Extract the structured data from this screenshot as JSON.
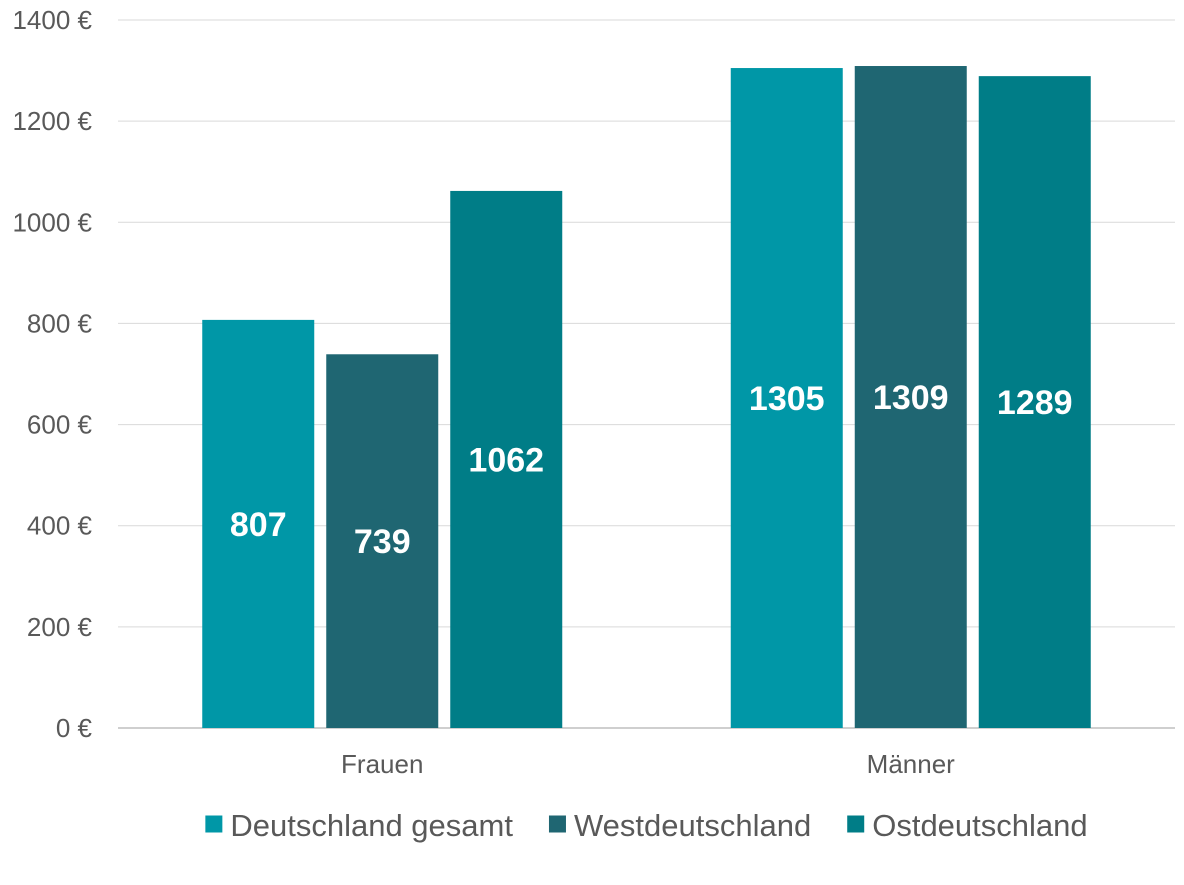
{
  "chart_data": {
    "type": "bar",
    "categories": [
      "Frauen",
      "Männer"
    ],
    "series": [
      {
        "name": "Deutschland gesamt",
        "values": [
          807,
          1305
        ],
        "color": "#0097A7"
      },
      {
        "name": "Westdeutschland",
        "values": [
          739,
          1309
        ],
        "color": "#1F6672"
      },
      {
        "name": "Ostdeutschland",
        "values": [
          1062,
          1289
        ],
        "color": "#007D87"
      }
    ],
    "ylim": [
      0,
      1400
    ],
    "yticks": [
      0,
      200,
      400,
      600,
      800,
      1000,
      1200,
      1400
    ],
    "ytick_labels": [
      "0 €",
      "200 €",
      "400 €",
      "600 €",
      "800 €",
      "1000 €",
      "1200 €",
      "1400 €"
    ],
    "grid": true,
    "legend_position": "bottom",
    "data_labels": true,
    "title": "",
    "xlabel": "",
    "ylabel": ""
  }
}
